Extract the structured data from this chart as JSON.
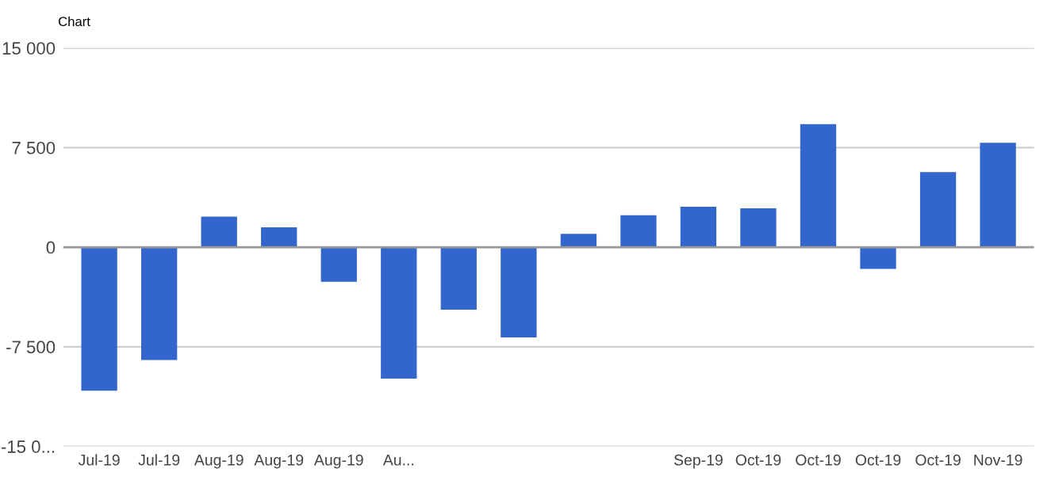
{
  "chart_data": {
    "type": "bar",
    "title": "Chart",
    "categories": [
      "Jul-19",
      "Jul-19",
      "Aug-19",
      "Aug-19",
      "Aug-19",
      "Au...",
      null,
      null,
      null,
      null,
      "Sep-19",
      "Oct-19",
      "Oct-19",
      "Oct-19",
      "Oct-19",
      "Nov-19"
    ],
    "values": [
      -10800,
      -8500,
      2300,
      1500,
      -2600,
      -9900,
      -4700,
      -6800,
      1000,
      2400,
      3050,
      2930,
      9260,
      -1640,
      5650,
      7860
    ],
    "color": "#3366cc",
    "ylim": [
      -15000,
      15000
    ],
    "yticks": [
      {
        "value": -15000,
        "label": "-15 0..."
      },
      {
        "value": -7500,
        "label": "-7 500"
      },
      0,
      {
        "value": 7500,
        "label": "7 500"
      },
      {
        "value": 15000,
        "label": "15 000"
      }
    ],
    "grid": "y"
  }
}
